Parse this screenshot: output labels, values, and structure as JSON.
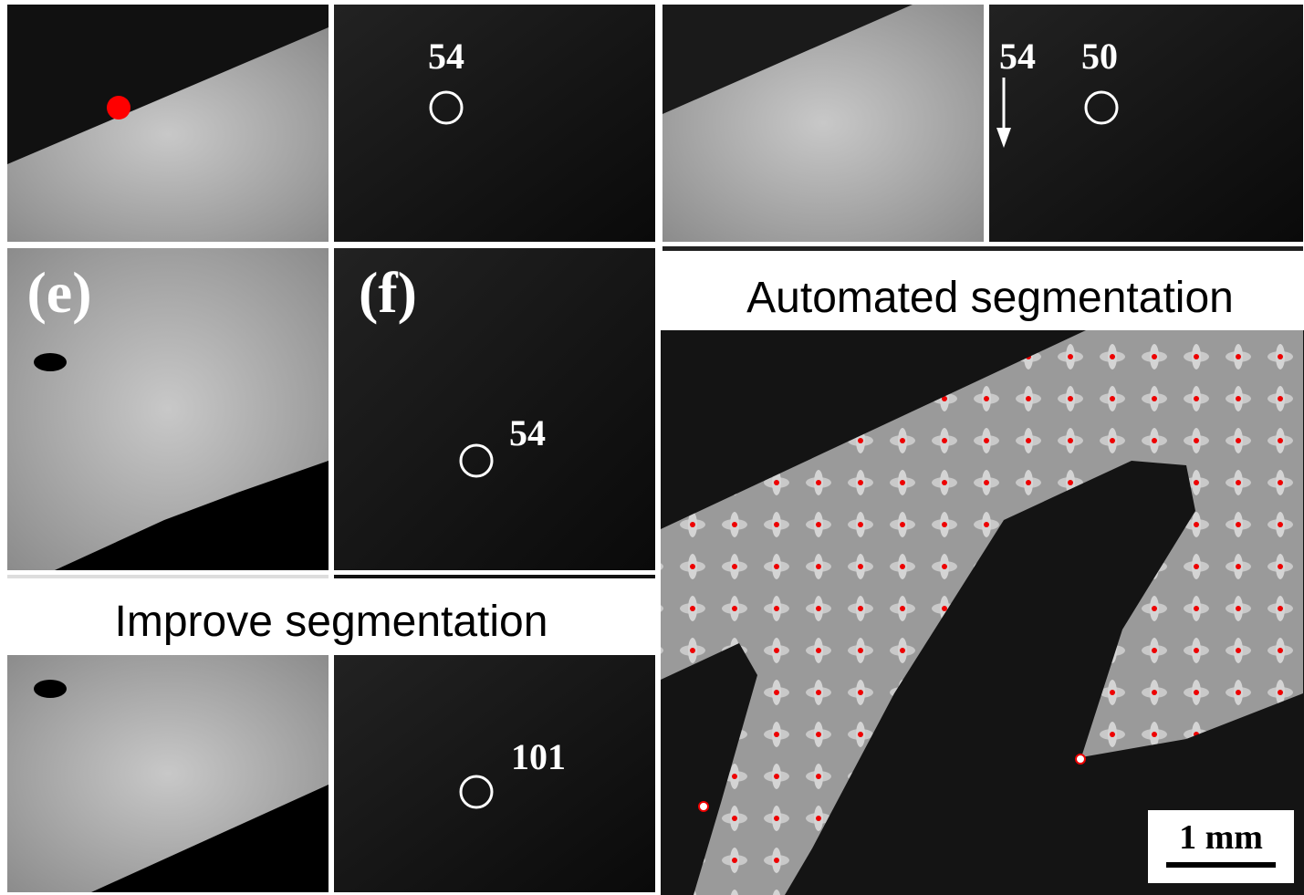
{
  "panels": {
    "b": {
      "label": "54"
    },
    "d": {
      "left_label": "54",
      "right_label": "50"
    },
    "e": {
      "label": "(e)"
    },
    "f": {
      "label": "(f)",
      "value": "54"
    },
    "h": {
      "value": "101"
    }
  },
  "captions": {
    "improve": "Improve segmentation",
    "automated": "Automated segmentation"
  },
  "scale_bar": "1 mm"
}
